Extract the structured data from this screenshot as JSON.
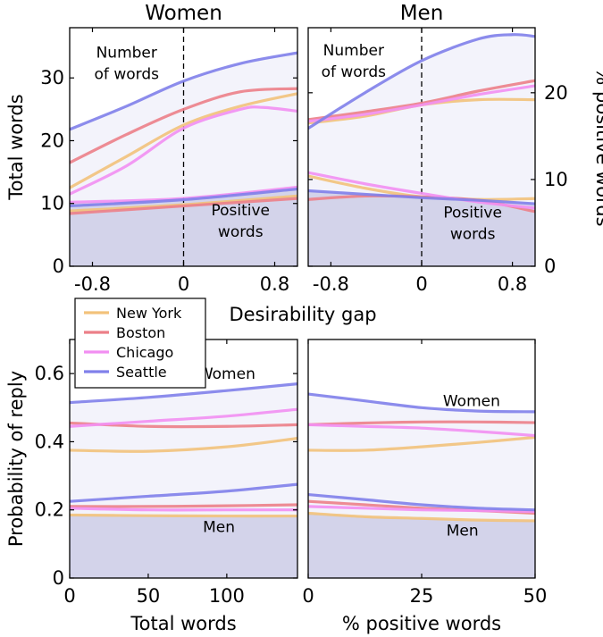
{
  "figure": {
    "shared_xlabel_top": "Desirability gap",
    "legend": [
      {
        "name": "New York",
        "color": "#f2c27b"
      },
      {
        "name": "Boston",
        "color": "#ec7f88"
      },
      {
        "name": "Chicago",
        "color": "#f28ff2"
      },
      {
        "name": "Seattle",
        "color": "#8080ea"
      }
    ],
    "colors": {
      "fill_light": "#f3f3fb",
      "fill_dark": "#d3d3ea"
    }
  },
  "chart_data": [
    {
      "type": "line",
      "panel": "top-left",
      "title": "Women",
      "ylabel": "Total words",
      "xlim": [
        -1.0,
        1.0
      ],
      "ylim": [
        0,
        38
      ],
      "xticks": [
        -0.8,
        0,
        0.8
      ],
      "xtick_labels": [
        "-0.8",
        "0",
        "0.8"
      ],
      "yticks": [
        0,
        10,
        20,
        30
      ],
      "ytick_labels": [
        "0",
        "10",
        "20",
        "30"
      ],
      "vline_x": 0,
      "annotations": [
        {
          "text": [
            "Number",
            "of words"
          ],
          "x": -0.5,
          "y": 33.2
        },
        {
          "text": [
            "Positive",
            "words"
          ],
          "x": 0.5,
          "y": 8.1
        }
      ],
      "shading": {
        "upper_series": "Seattle",
        "lower_series": "Chicago"
      },
      "series": [
        {
          "name": "New York",
          "group": "words",
          "x": [
            -1.0,
            -0.5,
            0.0,
            0.5,
            1.0
          ],
          "y": [
            12.5,
            17.5,
            22.5,
            25.5,
            27.5
          ]
        },
        {
          "name": "Boston",
          "group": "words",
          "x": [
            -1.0,
            -0.5,
            0.0,
            0.5,
            1.0
          ],
          "y": [
            16.5,
            21.0,
            25.0,
            27.8,
            28.3
          ]
        },
        {
          "name": "Chicago",
          "group": "words",
          "x": [
            -1.0,
            -0.5,
            0.0,
            0.5,
            0.7,
            1.0
          ],
          "y": [
            11.5,
            16.0,
            22.0,
            25.0,
            25.3,
            24.7
          ]
        },
        {
          "name": "Seattle",
          "group": "words",
          "x": [
            -1.0,
            -0.5,
            0.0,
            0.5,
            1.0
          ],
          "y": [
            21.8,
            25.5,
            29.5,
            32.3,
            34.0
          ]
        },
        {
          "name": "New York",
          "group": "positive",
          "x": [
            -1.0,
            0.0,
            1.0
          ],
          "y": [
            8.8,
            9.8,
            11.2
          ]
        },
        {
          "name": "Boston",
          "group": "positive",
          "x": [
            -1.0,
            0.0,
            1.0
          ],
          "y": [
            8.4,
            9.6,
            10.8
          ]
        },
        {
          "name": "Chicago",
          "group": "positive",
          "x": [
            -1.0,
            0.0,
            1.0
          ],
          "y": [
            10.2,
            10.8,
            12.6
          ]
        },
        {
          "name": "Seattle",
          "group": "positive",
          "x": [
            -1.0,
            0.0,
            1.0
          ],
          "y": [
            9.6,
            10.6,
            12.3
          ]
        }
      ]
    },
    {
      "type": "line",
      "panel": "top-right",
      "title": "Men",
      "ylabel": "% positive words",
      "xlim": [
        -1.0,
        1.0
      ],
      "ylim": [
        0,
        27.5
      ],
      "xticks": [
        -0.8,
        0,
        0.8
      ],
      "xtick_labels": [
        "-0.8",
        "0",
        "0.8"
      ],
      "yticks": [
        0,
        10,
        20
      ],
      "ytick_labels": [
        "0",
        "10",
        "20"
      ],
      "y_axis_side": "right",
      "vline_x": 0,
      "annotations": [
        {
          "text": [
            "Number",
            "of words"
          ],
          "x": -0.6,
          "y": 24.3
        },
        {
          "text": [
            "Positive",
            "words"
          ],
          "x": 0.45,
          "y": 5.6
        }
      ],
      "shading": {
        "upper_series": "Seattle",
        "lower_series": "Seattle"
      },
      "series": [
        {
          "name": "New York",
          "group": "words",
          "x": [
            -1.0,
            -0.5,
            0.0,
            0.5,
            1.0
          ],
          "y": [
            16.5,
            17.3,
            18.6,
            19.2,
            19.2
          ]
        },
        {
          "name": "Boston",
          "group": "words",
          "x": [
            -1.0,
            -0.5,
            0.0,
            0.5,
            1.0
          ],
          "y": [
            16.9,
            17.8,
            18.8,
            20.2,
            21.4
          ]
        },
        {
          "name": "Chicago",
          "group": "words",
          "x": [
            -1.0,
            -0.5,
            0.0,
            0.5,
            1.0
          ],
          "y": [
            16.7,
            17.5,
            18.6,
            19.8,
            20.8
          ]
        },
        {
          "name": "Seattle",
          "group": "words",
          "x": [
            -1.0,
            -0.5,
            0.0,
            0.5,
            0.8,
            1.0
          ],
          "y": [
            15.9,
            20.0,
            23.7,
            26.2,
            26.7,
            26.5
          ]
        },
        {
          "name": "New York",
          "group": "positive",
          "x": [
            -1.0,
            -0.5,
            0.0,
            0.5,
            1.0
          ],
          "y": [
            10.4,
            9.0,
            8.0,
            7.7,
            7.8
          ]
        },
        {
          "name": "Boston",
          "group": "positive",
          "x": [
            -1.0,
            -0.5,
            0.0,
            0.5,
            1.0
          ],
          "y": [
            7.7,
            8.1,
            8.0,
            7.6,
            6.3
          ]
        },
        {
          "name": "Chicago",
          "group": "positive",
          "x": [
            -1.0,
            -0.5,
            0.0,
            0.5,
            1.0
          ],
          "y": [
            10.8,
            9.5,
            8.4,
            7.4,
            6.7
          ]
        },
        {
          "name": "Seattle",
          "group": "positive",
          "x": [
            -1.0,
            -0.5,
            0.0,
            0.5,
            1.0
          ],
          "y": [
            8.7,
            8.3,
            7.9,
            7.6,
            7.2
          ]
        }
      ]
    },
    {
      "type": "line",
      "panel": "bottom-left",
      "ylabel": "Probability of reply",
      "xlabel": "Total words",
      "xlim": [
        0,
        145
      ],
      "ylim": [
        0,
        0.7
      ],
      "xticks": [
        0,
        50,
        100
      ],
      "xtick_labels": [
        "0",
        "50",
        "100"
      ],
      "yticks": [
        0,
        0.2,
        0.4,
        0.6
      ],
      "ytick_labels": [
        "0",
        "0.2",
        "0.4",
        "0.6"
      ],
      "annotations": [
        {
          "text": [
            "Women"
          ],
          "x": 100,
          "y": 0.585
        },
        {
          "text": [
            "Men"
          ],
          "x": 95,
          "y": 0.135
        }
      ],
      "shading": {
        "upper_series": "Seattle",
        "lower_series": "New York"
      },
      "series": [
        {
          "name": "New York",
          "group": "women",
          "x": [
            0,
            50,
            100,
            145
          ],
          "y": [
            0.375,
            0.372,
            0.385,
            0.41
          ]
        },
        {
          "name": "Boston",
          "group": "women",
          "x": [
            0,
            50,
            100,
            145
          ],
          "y": [
            0.455,
            0.445,
            0.445,
            0.45
          ]
        },
        {
          "name": "Chicago",
          "group": "women",
          "x": [
            0,
            50,
            100,
            145
          ],
          "y": [
            0.445,
            0.46,
            0.475,
            0.495
          ]
        },
        {
          "name": "Seattle",
          "group": "women",
          "x": [
            0,
            50,
            100,
            145
          ],
          "y": [
            0.515,
            0.53,
            0.55,
            0.57
          ]
        },
        {
          "name": "New York",
          "group": "men",
          "x": [
            0,
            50,
            100,
            145
          ],
          "y": [
            0.185,
            0.183,
            0.182,
            0.182
          ]
        },
        {
          "name": "Boston",
          "group": "men",
          "x": [
            0,
            50,
            100,
            145
          ],
          "y": [
            0.21,
            0.21,
            0.212,
            0.215
          ]
        },
        {
          "name": "Chicago",
          "group": "men",
          "x": [
            0,
            50,
            100,
            145
          ],
          "y": [
            0.205,
            0.2,
            0.2,
            0.2
          ]
        },
        {
          "name": "Seattle",
          "group": "men",
          "x": [
            0,
            50,
            100,
            145
          ],
          "y": [
            0.225,
            0.24,
            0.255,
            0.275
          ]
        }
      ]
    },
    {
      "type": "line",
      "panel": "bottom-right",
      "xlabel": "% positive words",
      "xlim": [
        0,
        50
      ],
      "ylim": [
        0,
        0.7
      ],
      "xticks": [
        0,
        25,
        50
      ],
      "xtick_labels": [
        "0",
        "25",
        "50"
      ],
      "annotations": [
        {
          "text": [
            "Women"
          ],
          "x": 36,
          "y": 0.505
        },
        {
          "text": [
            "Men"
          ],
          "x": 34,
          "y": 0.125
        }
      ],
      "shading": {
        "upper_series": "Seattle",
        "lower_series": "New York"
      },
      "series": [
        {
          "name": "New York",
          "group": "women",
          "x": [
            0,
            12.5,
            25,
            37.5,
            50
          ],
          "y": [
            0.375,
            0.375,
            0.385,
            0.398,
            0.413
          ]
        },
        {
          "name": "Boston",
          "group": "women",
          "x": [
            0,
            12.5,
            25,
            37.5,
            50
          ],
          "y": [
            0.45,
            0.455,
            0.458,
            0.458,
            0.456
          ]
        },
        {
          "name": "Chicago",
          "group": "women",
          "x": [
            0,
            12.5,
            25,
            37.5,
            50
          ],
          "y": [
            0.45,
            0.445,
            0.44,
            0.43,
            0.418
          ]
        },
        {
          "name": "Seattle",
          "group": "women",
          "x": [
            0,
            12.5,
            25,
            37.5,
            50
          ],
          "y": [
            0.54,
            0.52,
            0.5,
            0.49,
            0.488
          ]
        },
        {
          "name": "New York",
          "group": "men",
          "x": [
            0,
            12.5,
            25,
            37.5,
            50
          ],
          "y": [
            0.19,
            0.18,
            0.175,
            0.17,
            0.168
          ]
        },
        {
          "name": "Boston",
          "group": "men",
          "x": [
            0,
            12.5,
            25,
            37.5,
            50
          ],
          "y": [
            0.225,
            0.215,
            0.205,
            0.198,
            0.19
          ]
        },
        {
          "name": "Chicago",
          "group": "men",
          "x": [
            0,
            12.5,
            25,
            37.5,
            50
          ],
          "y": [
            0.21,
            0.205,
            0.2,
            0.198,
            0.195
          ]
        },
        {
          "name": "Seattle",
          "group": "men",
          "x": [
            0,
            12.5,
            25,
            37.5,
            50
          ],
          "y": [
            0.245,
            0.23,
            0.215,
            0.205,
            0.2
          ]
        }
      ]
    }
  ]
}
